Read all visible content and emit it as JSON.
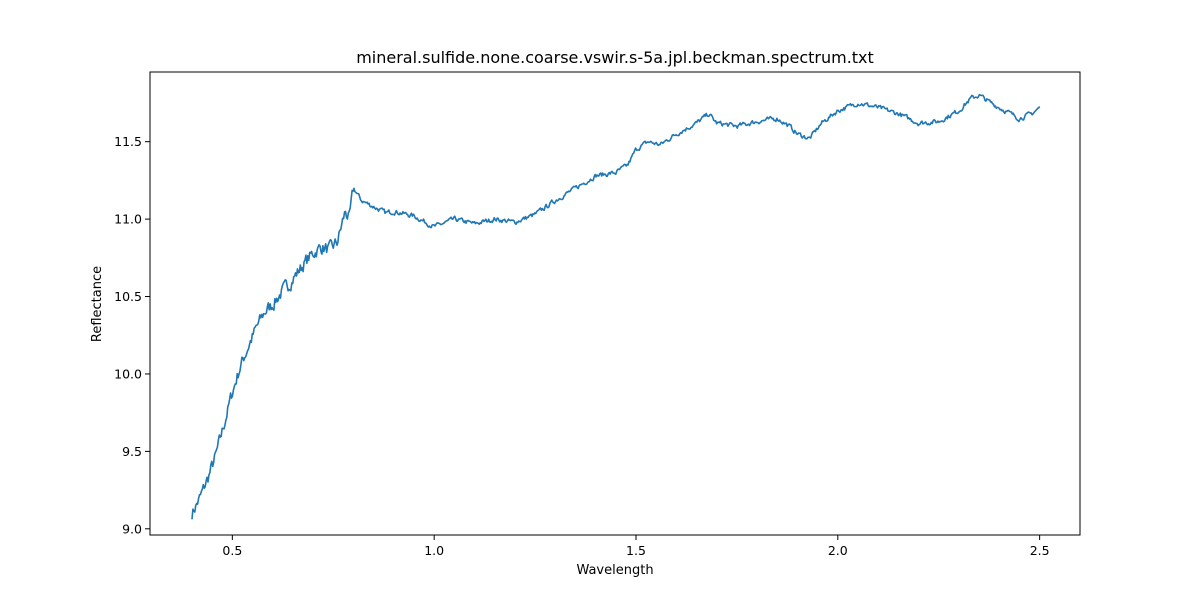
{
  "chart_data": {
    "type": "line",
    "title": "mineral.sulfide.none.coarse.vswir.s-5a.jpl.beckman.spectrum.txt",
    "xlabel": "Wavelength",
    "ylabel": "Reflectance",
    "xlim": [
      0.296,
      2.6
    ],
    "ylim": [
      8.96,
      11.95
    ],
    "xticks": [
      {
        "value": 0.5,
        "label": "0.5"
      },
      {
        "value": 1.0,
        "label": "1.0"
      },
      {
        "value": 1.5,
        "label": "1.5"
      },
      {
        "value": 2.0,
        "label": "2.0"
      },
      {
        "value": 2.5,
        "label": "2.5"
      }
    ],
    "yticks": [
      {
        "value": 9.0,
        "label": "9.0"
      },
      {
        "value": 9.5,
        "label": "9.5"
      },
      {
        "value": 10.0,
        "label": "10.0"
      },
      {
        "value": 10.5,
        "label": "10.5"
      },
      {
        "value": 11.0,
        "label": "11.0"
      },
      {
        "value": 11.5,
        "label": "11.5"
      }
    ],
    "grid": false,
    "line_color": "#1f77b4",
    "series": [
      {
        "x": [
          0.4,
          0.42,
          0.44,
          0.46,
          0.48,
          0.5,
          0.52,
          0.54,
          0.56,
          0.58,
          0.6,
          0.62,
          0.64,
          0.66,
          0.68,
          0.7,
          0.72,
          0.74,
          0.76,
          0.78,
          0.79,
          0.8,
          0.82,
          0.85,
          0.88,
          0.9,
          0.95,
          1.0,
          1.05,
          1.1,
          1.15,
          1.2,
          1.25,
          1.3,
          1.35,
          1.4,
          1.45,
          1.48,
          1.5,
          1.53,
          1.56,
          1.6,
          1.65,
          1.68,
          1.7,
          1.75,
          1.8,
          1.85,
          1.88,
          1.9,
          1.93,
          1.96,
          2.0,
          2.05,
          2.1,
          2.15,
          2.2,
          2.25,
          2.3,
          2.33,
          2.35,
          2.38,
          2.4,
          2.45,
          2.48,
          2.5
        ],
        "y": [
          9.1,
          9.2,
          9.33,
          9.48,
          9.68,
          9.88,
          10.05,
          10.18,
          10.3,
          10.4,
          10.45,
          10.52,
          10.58,
          10.65,
          10.72,
          10.78,
          10.82,
          10.8,
          10.85,
          11.05,
          11.0,
          11.2,
          11.12,
          11.08,
          11.04,
          11.05,
          11.02,
          10.95,
          11.0,
          10.97,
          11.0,
          10.98,
          11.03,
          11.12,
          11.2,
          11.28,
          11.3,
          11.35,
          11.45,
          11.5,
          11.48,
          11.55,
          11.62,
          11.68,
          11.62,
          11.6,
          11.63,
          11.65,
          11.6,
          11.55,
          11.52,
          11.62,
          11.7,
          11.75,
          11.72,
          11.68,
          11.62,
          11.63,
          11.7,
          11.78,
          11.8,
          11.75,
          11.72,
          11.65,
          11.68,
          11.72
        ]
      }
    ]
  }
}
